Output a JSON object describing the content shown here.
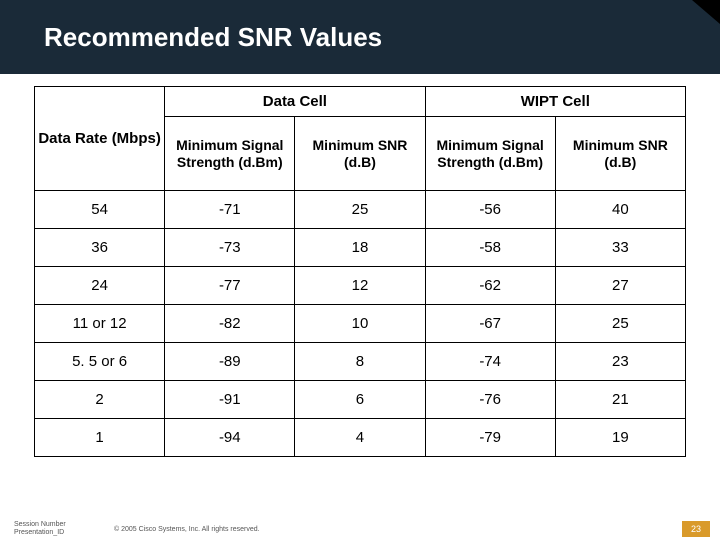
{
  "title": "Recommended SNR Values",
  "table": {
    "headers": {
      "col1": "Data Rate (Mbps)",
      "group_a": "Data Cell",
      "group_b": "WIPT Cell",
      "sub_a1": "Minimum Signal Strength (d.Bm)",
      "sub_a2": "Minimum SNR (d.B)",
      "sub_b1": "Minimum Signal Strength (d.Bm)",
      "sub_b2": "Minimum SNR (d.B)"
    },
    "rows": [
      {
        "rate": "54",
        "a1": "-71",
        "a2": "25",
        "b1": "-56",
        "b2": "40"
      },
      {
        "rate": "36",
        "a1": "-73",
        "a2": "18",
        "b1": "-58",
        "b2": "33"
      },
      {
        "rate": "24",
        "a1": "-77",
        "a2": "12",
        "b1": "-62",
        "b2": "27"
      },
      {
        "rate": "11 or 12",
        "a1": "-82",
        "a2": "10",
        "b1": "-67",
        "b2": "25"
      },
      {
        "rate": "5. 5 or 6",
        "a1": "-89",
        "a2": "8",
        "b1": "-74",
        "b2": "23"
      },
      {
        "rate": "2",
        "a1": "-91",
        "a2": "6",
        "b1": "-76",
        "b2": "21"
      },
      {
        "rate": "1",
        "a1": "-94",
        "a2": "4",
        "b1": "-79",
        "b2": "19"
      }
    ]
  },
  "footer": {
    "session": "Session Number Presentation_ID",
    "copyright": "© 2005 Cisco Systems, Inc. All rights reserved.",
    "page": "23"
  },
  "styling": {
    "title_band_color": "#1a2a38",
    "corner_color": "#000000",
    "border_color": "#000000",
    "page_badge_color": "#d99a2b",
    "title_fontsize": 26,
    "header_fontsize": 15,
    "cell_fontsize": 15,
    "footer_fontsize": 7
  }
}
